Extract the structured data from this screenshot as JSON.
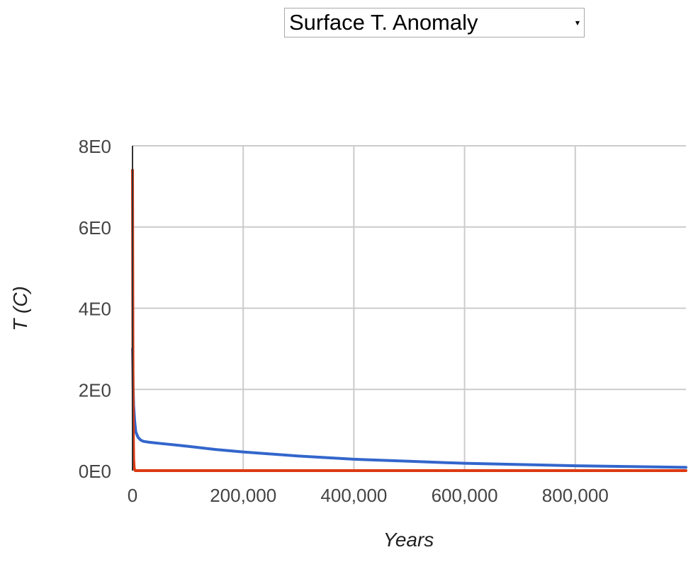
{
  "selector": {
    "selected": "Surface T. Anomaly"
  },
  "colors": {
    "grid": "#cccccc",
    "axis": "#333333",
    "text": "#444444",
    "title_text": "#222222"
  },
  "chart_data": {
    "type": "line",
    "title": "",
    "xlabel": "Years",
    "ylabel": "T (C)",
    "xlim": [
      0,
      1000000
    ],
    "ylim": [
      0,
      8
    ],
    "x_ticks": [
      0,
      200000,
      400000,
      600000,
      800000
    ],
    "x_tick_labels": [
      "0",
      "200,000",
      "400,000",
      "600,000",
      "800,000"
    ],
    "y_ticks": [
      0,
      2,
      4,
      6,
      8
    ],
    "y_tick_labels": [
      "0E0",
      "2E0",
      "4E0",
      "6E0",
      "8E0"
    ],
    "grid": true,
    "series": [
      {
        "color": "#3366cc",
        "x": [
          0,
          1000,
          2000,
          4000,
          6000,
          10000,
          15000,
          20000,
          30000,
          50000,
          100000,
          150000,
          200000,
          300000,
          400000,
          500000,
          600000,
          700000,
          800000,
          900000,
          1000000
        ],
        "y": [
          3.0,
          2.1,
          1.6,
          1.2,
          0.95,
          0.82,
          0.75,
          0.72,
          0.7,
          0.67,
          0.6,
          0.52,
          0.46,
          0.36,
          0.28,
          0.23,
          0.18,
          0.15,
          0.12,
          0.1,
          0.08
        ]
      },
      {
        "color": "#dc3912",
        "x": [
          0,
          300,
          700,
          1200,
          2000,
          3000,
          5000,
          10000,
          100000,
          500000,
          1000000
        ],
        "y": [
          7.4,
          5.5,
          3.0,
          1.2,
          0.3,
          0.05,
          0.0,
          0.0,
          0.0,
          0.0,
          0.0
        ]
      }
    ]
  }
}
